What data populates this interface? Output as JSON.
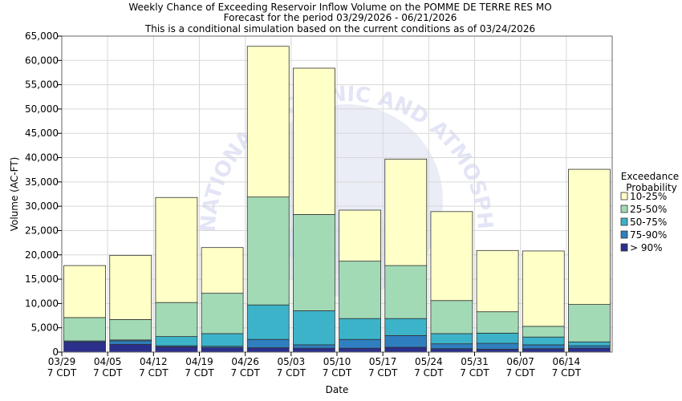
{
  "chart_data": {
    "type": "bar",
    "stacked": true,
    "title": "Weekly Chance of Exceeding Reservoir Inflow Volume on the POMME DE TERRE RES MO",
    "subtitle": "Forecast for the period 03/29/2026 - 06/21/2026",
    "subtitle2": "This is a conditional simulation based on the current conditions as of 03/24/2026",
    "xlabel": "Date",
    "ylabel": "Volume (AC-FT)",
    "ylim": [
      0,
      65000
    ],
    "yticks": [
      0,
      5000,
      10000,
      15000,
      20000,
      25000,
      30000,
      35000,
      40000,
      45000,
      50000,
      55000,
      60000,
      65000
    ],
    "ytick_labels": [
      "0",
      "5,000",
      "10,000",
      "15,000",
      "20,000",
      "25,000",
      "30,000",
      "35,000",
      "40,000",
      "45,000",
      "50,000",
      "55,000",
      "60,000",
      "65,000"
    ],
    "grid": true,
    "categories": [
      "03/29",
      "04/05",
      "04/12",
      "04/19",
      "04/26",
      "05/03",
      "05/10",
      "05/17",
      "05/24",
      "05/31",
      "06/07",
      "06/14"
    ],
    "category_sublabel": "7 CDT",
    "legend_title": [
      "Exceedance",
      "Probability"
    ],
    "legend_position": "right",
    "series": [
      {
        "name": "> 90%",
        "color": "#2b2f8c",
        "values": [
          2100,
          1600,
          1100,
          900,
          900,
          800,
          800,
          1000,
          700,
          600,
          700,
          800
        ]
      },
      {
        "name": "75-90%",
        "color": "#2f7fc0",
        "values": [
          200,
          700,
          200,
          300,
          1700,
          700,
          1800,
          2400,
          1000,
          1200,
          800,
          500
        ]
      },
      {
        "name": "50-75%",
        "color": "#3cb3c8",
        "values": [
          0,
          200,
          1900,
          2600,
          7100,
          7000,
          4300,
          3500,
          2100,
          2100,
          1600,
          800
        ]
      },
      {
        "name": "25-50%",
        "color": "#a2dab6",
        "values": [
          4800,
          4200,
          7000,
          8300,
          22200,
          19800,
          11800,
          10900,
          6800,
          4400,
          2200,
          7700
        ]
      },
      {
        "name": "10-25%",
        "color": "#ffffc8",
        "values": [
          10700,
          13200,
          21600,
          9400,
          31000,
          30100,
          10500,
          21900,
          18300,
          12600,
          15500,
          27800
        ]
      }
    ],
    "legend_order": [
      "10-25%",
      "25-50%",
      "50-75%",
      "75-90%",
      "> 90%"
    ],
    "watermark": "NATIONAL OCEANIC AND ATMOSPHERIC ADMINISTRATION"
  }
}
